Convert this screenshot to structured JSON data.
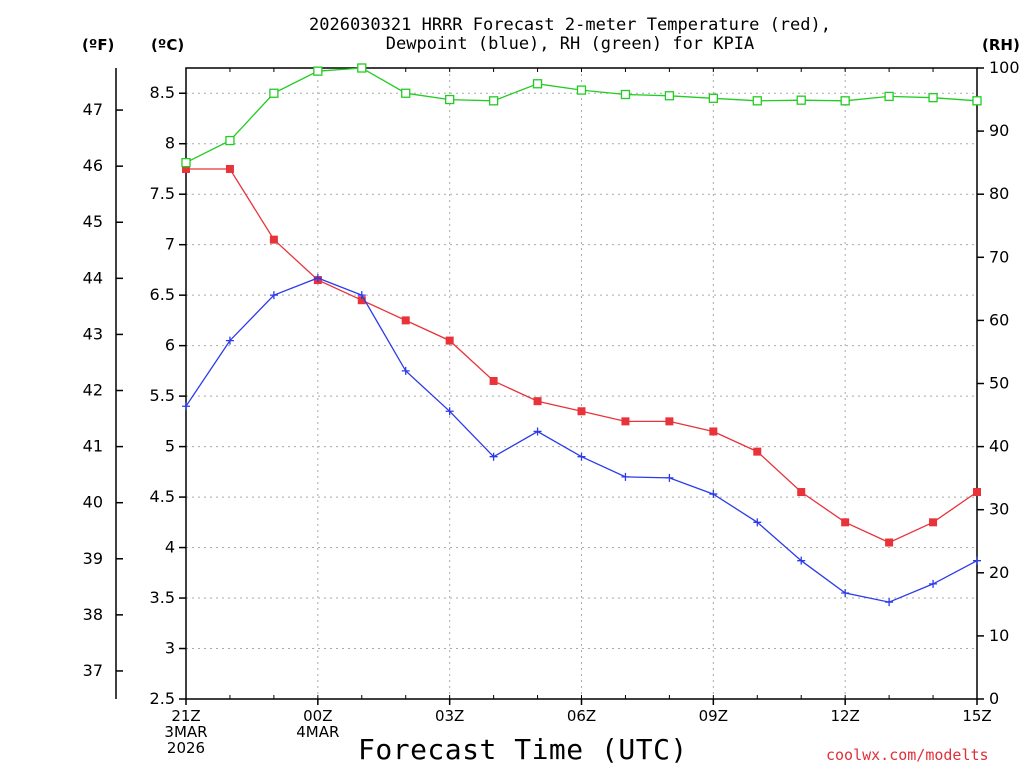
{
  "chart_data": {
    "type": "line",
    "title_line1": "2026030321 HRRR Forecast 2-meter Temperature (red),",
    "title_line2": "Dewpoint (blue), RH (green) for KPIA",
    "xlabel": "Forecast Time (UTC)",
    "credit": "coolwx.com/modelts",
    "axis_units": {
      "fahrenheit": "(ºF)",
      "celsius": "(ºC)",
      "rh": "(RH)"
    },
    "x_hours": [
      0,
      1,
      2,
      3,
      4,
      5,
      6,
      7,
      8,
      9,
      10,
      11,
      12,
      13,
      14,
      15,
      16,
      17,
      18
    ],
    "x_ticks": [
      {
        "hour": 0,
        "lines": [
          "21Z",
          "3MAR",
          "2026"
        ]
      },
      {
        "hour": 3,
        "lines": [
          "00Z",
          "4MAR"
        ]
      },
      {
        "hour": 6,
        "lines": [
          "03Z"
        ]
      },
      {
        "hour": 9,
        "lines": [
          "06Z"
        ]
      },
      {
        "hour": 12,
        "lines": [
          "09Z"
        ]
      },
      {
        "hour": 15,
        "lines": [
          "12Z"
        ]
      },
      {
        "hour": 18,
        "lines": [
          "15Z"
        ]
      }
    ],
    "ylim_c": [
      2.5,
      8.75
    ],
    "yticks_c": [
      "2.5",
      "3",
      "3.5",
      "4",
      "4.5",
      "5",
      "5.5",
      "6",
      "6.5",
      "7",
      "7.5",
      "8",
      "8.5"
    ],
    "yticks_f": [
      "37",
      "38",
      "39",
      "40",
      "41",
      "42",
      "43",
      "44",
      "45",
      "46",
      "47"
    ],
    "ylim_rh": [
      0,
      100
    ],
    "yticks_rh": [
      "0",
      "10",
      "20",
      "30",
      "40",
      "50",
      "60",
      "70",
      "80",
      "90",
      "100"
    ],
    "series": [
      {
        "name": "Temperature",
        "axis": "C",
        "color": "#e8333b",
        "marker": "filled-square",
        "values": [
          7.75,
          7.75,
          7.05,
          6.65,
          6.45,
          6.25,
          6.05,
          5.65,
          5.45,
          5.35,
          5.25,
          5.25,
          5.15,
          4.95,
          4.55,
          4.25,
          4.05,
          4.25,
          4.55
        ]
      },
      {
        "name": "Dewpoint",
        "axis": "C",
        "color": "#2b3bea",
        "marker": "plus",
        "values": [
          5.4,
          6.05,
          6.5,
          6.67,
          6.5,
          5.75,
          5.35,
          4.9,
          5.15,
          4.9,
          4.7,
          4.69,
          4.53,
          4.25,
          3.87,
          3.55,
          3.46,
          3.64,
          3.87
        ]
      },
      {
        "name": "RH",
        "axis": "RH",
        "color": "#22cc22",
        "marker": "open-square",
        "values": [
          85,
          88.5,
          96,
          99.5,
          100,
          96,
          95,
          94.8,
          97.5,
          96.5,
          95.8,
          95.6,
          95.2,
          94.8,
          94.9,
          94.8,
          95.5,
          95.3,
          94.8
        ]
      }
    ]
  }
}
